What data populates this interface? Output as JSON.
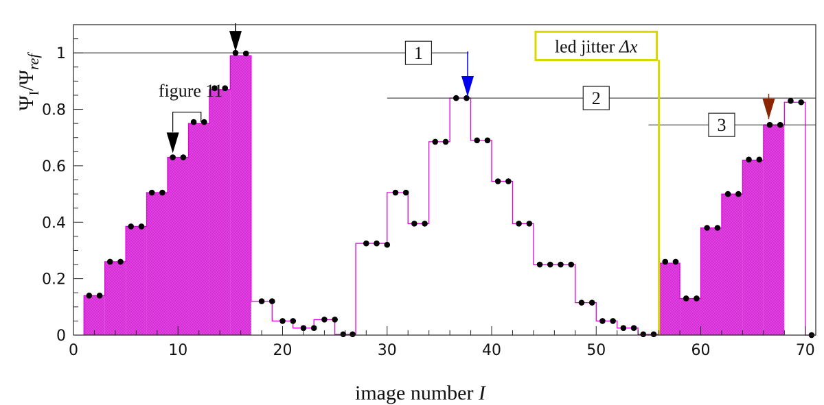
{
  "chart_data": {
    "type": "line",
    "xlabel": "image number",
    "xlabel_italic_symbol": "I",
    "ylabel_parts": {
      "psi1": "Ψ",
      "sub1": "I",
      "slash": "/",
      "psi2": "Ψ",
      "sub2": "ref"
    },
    "xlim": [
      0,
      71
    ],
    "ylim": [
      0,
      1.1
    ],
    "x_ticks": [
      0,
      10,
      20,
      30,
      40,
      50,
      60,
      70
    ],
    "y_ticks": [
      0,
      0.2,
      0.4,
      0.6,
      0.8,
      1
    ],
    "x_tick_labels": [
      "0",
      "10",
      "20",
      "30",
      "40",
      "50",
      "60",
      "70"
    ],
    "y_tick_labels": [
      "0",
      "0.2",
      "0.4",
      "0.6",
      "0.8",
      "1"
    ],
    "grid": false,
    "colors": {
      "histogram_line": "#e000e0",
      "fill": "#e040e0",
      "points": "#000000",
      "led_box": "#d8d800",
      "arrow_black": "#000000",
      "arrow_blue": "#0000ee",
      "arrow_brown": "#8b2500"
    },
    "steps": [
      {
        "x0": 1,
        "x1": 3,
        "y": 0.14,
        "filled": true
      },
      {
        "x0": 3,
        "x1": 5,
        "y": 0.26,
        "filled": true
      },
      {
        "x0": 5,
        "x1": 7,
        "y": 0.385,
        "filled": true
      },
      {
        "x0": 7,
        "x1": 9,
        "y": 0.505,
        "filled": true
      },
      {
        "x0": 9,
        "x1": 11,
        "y": 0.63,
        "filled": true
      },
      {
        "x0": 11,
        "x1": 13,
        "y": 0.75,
        "filled": true
      },
      {
        "x0": 13,
        "x1": 15,
        "y": 0.87,
        "filled": true
      },
      {
        "x0": 15,
        "x1": 17,
        "y": 0.99,
        "filled": true
      },
      {
        "x0": 17,
        "x1": 19,
        "y": 0.12,
        "filled": false
      },
      {
        "x0": 19,
        "x1": 21,
        "y": 0.05,
        "filled": false
      },
      {
        "x0": 21,
        "x1": 23,
        "y": 0.025,
        "filled": false
      },
      {
        "x0": 23,
        "x1": 25,
        "y": 0.055,
        "filled": false
      },
      {
        "x0": 25,
        "x1": 27,
        "y": 0.003,
        "filled": false
      },
      {
        "x0": 27,
        "x1": 30,
        "y": 0.325,
        "filled": false
      },
      {
        "x0": 30,
        "x1": 32,
        "y": 0.505,
        "filled": false
      },
      {
        "x0": 32,
        "x1": 34,
        "y": 0.395,
        "filled": false
      },
      {
        "x0": 34,
        "x1": 36,
        "y": 0.685,
        "filled": false
      },
      {
        "x0": 36,
        "x1": 38,
        "y": 0.84,
        "filled": false
      },
      {
        "x0": 38,
        "x1": 40,
        "y": 0.69,
        "filled": false
      },
      {
        "x0": 40,
        "x1": 42,
        "y": 0.545,
        "filled": false
      },
      {
        "x0": 42,
        "x1": 44,
        "y": 0.395,
        "filled": false
      },
      {
        "x0": 44,
        "x1": 48,
        "y": 0.25,
        "filled": false
      },
      {
        "x0": 48,
        "x1": 50,
        "y": 0.115,
        "filled": false
      },
      {
        "x0": 50,
        "x1": 52,
        "y": 0.05,
        "filled": false
      },
      {
        "x0": 52,
        "x1": 54,
        "y": 0.025,
        "filled": false
      },
      {
        "x0": 54,
        "x1": 56,
        "y": 0.003,
        "filled": false
      },
      {
        "x0": 56,
        "x1": 58,
        "y": 0.255,
        "filled": true
      },
      {
        "x0": 58,
        "x1": 60,
        "y": 0.13,
        "filled": true
      },
      {
        "x0": 60,
        "x1": 62,
        "y": 0.38,
        "filled": true
      },
      {
        "x0": 62,
        "x1": 64,
        "y": 0.5,
        "filled": true
      },
      {
        "x0": 64,
        "x1": 66,
        "y": 0.62,
        "filled": true
      },
      {
        "x0": 66,
        "x1": 68,
        "y": 0.745,
        "filled": true
      },
      {
        "x0": 68,
        "x1": 70,
        "y": 0.825,
        "filled": false
      },
      {
        "x0": 70,
        "x1": 71,
        "y": 0.0,
        "filled": false
      }
    ],
    "points": [
      {
        "x": 1.5,
        "y": 0.14
      },
      {
        "x": 2.5,
        "y": 0.14
      },
      {
        "x": 3.5,
        "y": 0.26
      },
      {
        "x": 4.5,
        "y": 0.26
      },
      {
        "x": 5.5,
        "y": 0.385
      },
      {
        "x": 6.5,
        "y": 0.385
      },
      {
        "x": 7.5,
        "y": 0.505
      },
      {
        "x": 8.5,
        "y": 0.505
      },
      {
        "x": 9.5,
        "y": 0.63
      },
      {
        "x": 10.5,
        "y": 0.63
      },
      {
        "x": 11.5,
        "y": 0.755
      },
      {
        "x": 12.5,
        "y": 0.755
      },
      {
        "x": 13.5,
        "y": 0.875
      },
      {
        "x": 14.5,
        "y": 0.875
      },
      {
        "x": 15.5,
        "y": 1.0
      },
      {
        "x": 16.5,
        "y": 0.998
      },
      {
        "x": 18.0,
        "y": 0.12
      },
      {
        "x": 19.0,
        "y": 0.12
      },
      {
        "x": 20.0,
        "y": 0.05
      },
      {
        "x": 21.0,
        "y": 0.05
      },
      {
        "x": 22.0,
        "y": 0.025
      },
      {
        "x": 23.0,
        "y": 0.025
      },
      {
        "x": 24.0,
        "y": 0.055
      },
      {
        "x": 25.0,
        "y": 0.055
      },
      {
        "x": 25.8,
        "y": 0.003
      },
      {
        "x": 26.7,
        "y": 0.003
      },
      {
        "x": 28.0,
        "y": 0.325
      },
      {
        "x": 29.0,
        "y": 0.325
      },
      {
        "x": 30.0,
        "y": 0.32
      },
      {
        "x": 30.8,
        "y": 0.505
      },
      {
        "x": 31.8,
        "y": 0.505
      },
      {
        "x": 32.6,
        "y": 0.395
      },
      {
        "x": 33.6,
        "y": 0.395
      },
      {
        "x": 34.6,
        "y": 0.685
      },
      {
        "x": 35.6,
        "y": 0.685
      },
      {
        "x": 36.6,
        "y": 0.84
      },
      {
        "x": 37.6,
        "y": 0.84
      },
      {
        "x": 38.6,
        "y": 0.69
      },
      {
        "x": 39.6,
        "y": 0.69
      },
      {
        "x": 40.6,
        "y": 0.545
      },
      {
        "x": 41.6,
        "y": 0.545
      },
      {
        "x": 42.6,
        "y": 0.395
      },
      {
        "x": 43.6,
        "y": 0.395
      },
      {
        "x": 44.6,
        "y": 0.25
      },
      {
        "x": 45.6,
        "y": 0.25
      },
      {
        "x": 46.6,
        "y": 0.25
      },
      {
        "x": 47.6,
        "y": 0.25
      },
      {
        "x": 48.6,
        "y": 0.115
      },
      {
        "x": 49.6,
        "y": 0.115
      },
      {
        "x": 50.6,
        "y": 0.05
      },
      {
        "x": 51.6,
        "y": 0.05
      },
      {
        "x": 52.6,
        "y": 0.025
      },
      {
        "x": 53.6,
        "y": 0.025
      },
      {
        "x": 54.5,
        "y": 0.003
      },
      {
        "x": 55.5,
        "y": 0.003
      },
      {
        "x": 56.6,
        "y": 0.26
      },
      {
        "x": 57.6,
        "y": 0.26
      },
      {
        "x": 58.6,
        "y": 0.13
      },
      {
        "x": 59.6,
        "y": 0.13
      },
      {
        "x": 60.6,
        "y": 0.38
      },
      {
        "x": 61.6,
        "y": 0.38
      },
      {
        "x": 62.6,
        "y": 0.5
      },
      {
        "x": 63.6,
        "y": 0.5
      },
      {
        "x": 64.6,
        "y": 0.622
      },
      {
        "x": 65.6,
        "y": 0.622
      },
      {
        "x": 66.6,
        "y": 0.745
      },
      {
        "x": 67.6,
        "y": 0.745
      },
      {
        "x": 68.6,
        "y": 0.83
      },
      {
        "x": 69.6,
        "y": 0.825
      },
      {
        "x": 70.6,
        "y": 0.0
      }
    ],
    "reference_lines": [
      {
        "y": 1.0,
        "x0": 0,
        "x1": 37.8,
        "label": "1",
        "label_x": 33
      },
      {
        "y": 0.84,
        "x0": 30,
        "x1": 71,
        "label": "2",
        "label_x": 50
      },
      {
        "y": 0.745,
        "x0": 55,
        "x1": 71,
        "label": "3",
        "label_x": 62
      }
    ],
    "arrows": [
      {
        "x": 15.5,
        "y_top": 1.105,
        "y_tip": 1.005,
        "color_key": "arrow_black",
        "shaft": true
      },
      {
        "x": 37.7,
        "y_top": 1.005,
        "y_tip": 0.845,
        "color_key": "arrow_blue",
        "shaft": true
      },
      {
        "x": 66.5,
        "y_top": 0.855,
        "y_tip": 0.765,
        "color_key": "arrow_brown",
        "shaft": true
      },
      {
        "x": 9.5,
        "y_top": 0.72,
        "y_tip": 0.645,
        "color_key": "arrow_black",
        "shaft": false
      }
    ],
    "annotations": {
      "figure11": {
        "text": "figure 11",
        "x": 9.5,
        "y": 0.845
      },
      "led": {
        "text": "led jitter ",
        "symbol": "Δx",
        "line_x": 56,
        "box_x0": 44.2,
        "box_x1": 55.8,
        "box_y0": 0.975,
        "box_y1": 1.075
      }
    }
  }
}
